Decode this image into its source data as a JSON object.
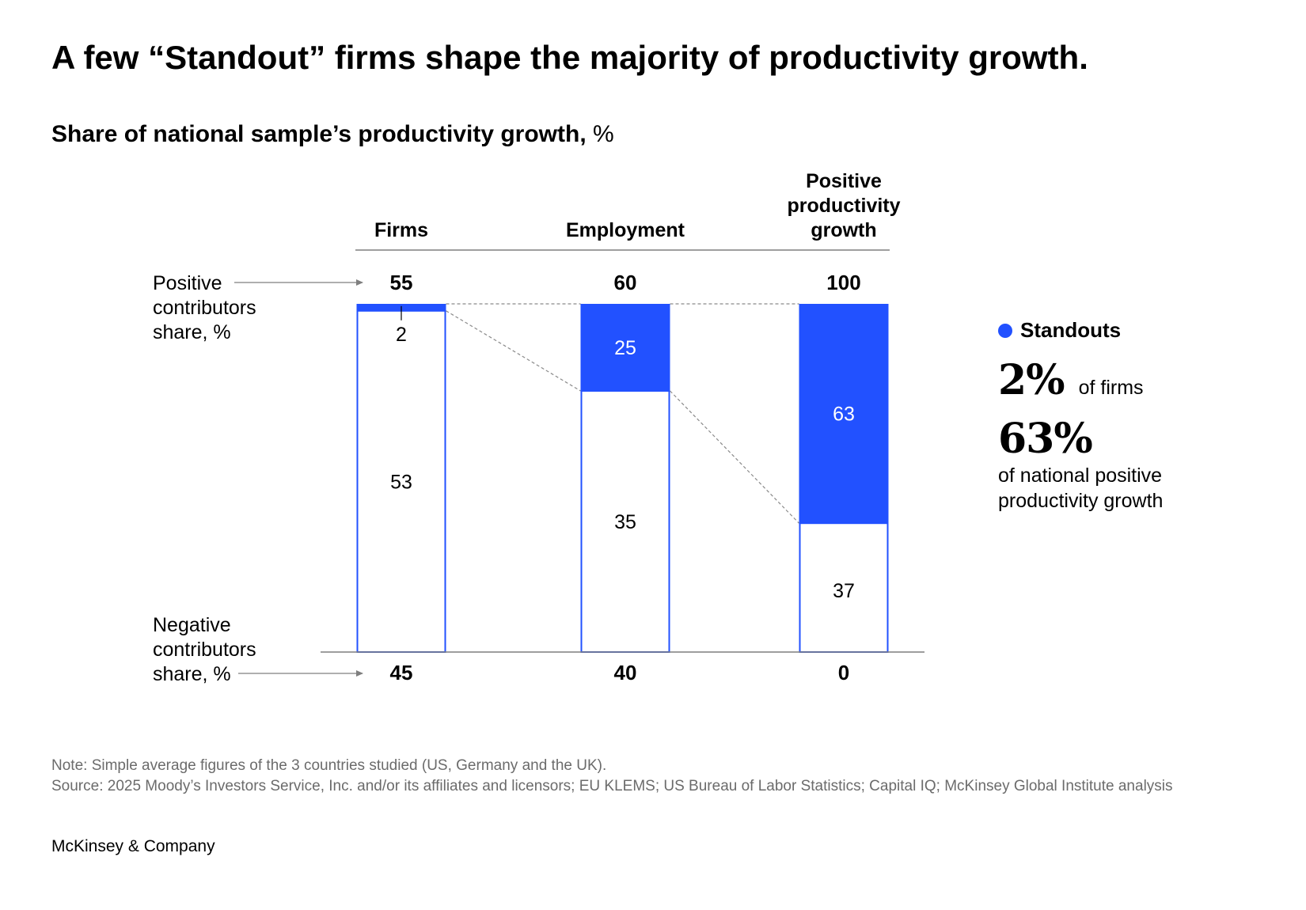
{
  "title": "A few “Standout” firms shape the majority of productivity growth.",
  "subtitle": {
    "main": "Share of national sample’s productivity growth,",
    "unit": "%"
  },
  "side_labels": {
    "positive": [
      "Positive",
      "contributors",
      "share, %"
    ],
    "negative": [
      "Negative",
      "contributors",
      "share, %"
    ]
  },
  "colors": {
    "standout": "#2251ff",
    "outline": "#2251ff",
    "axis": "#7f7f7f",
    "connector": "#8a8a8a"
  },
  "chart_data": {
    "type": "bar",
    "stacked": true,
    "categories": [
      [
        "Firms"
      ],
      [
        "Employment"
      ],
      [
        "Positive",
        "productivity",
        "growth"
      ]
    ],
    "positive_totals": [
      55,
      60,
      100
    ],
    "negative_totals": [
      45,
      40,
      0
    ],
    "series": [
      {
        "name": "Standouts",
        "values": [
          2,
          25,
          63
        ]
      },
      {
        "name": "",
        "values": [
          53,
          35,
          37
        ]
      }
    ],
    "ylim": [
      0,
      100
    ],
    "legend_position": "right",
    "grid": false
  },
  "legend": {
    "label": "Standouts",
    "stat1_value": "2%",
    "stat1_text": "of firms",
    "stat2_value": "63%",
    "stat2_text": "of national positive productivity growth"
  },
  "note": "Note: Simple average figures of the 3 countries studied (US, Germany and the UK).",
  "source": "Source: 2025 Moody’s Investors Service, Inc. and/or its affiliates and licensors; EU KLEMS; US Bureau of Labor Statistics; Capital IQ; McKinsey Global Institute analysis",
  "brand": "McKinsey & Company"
}
